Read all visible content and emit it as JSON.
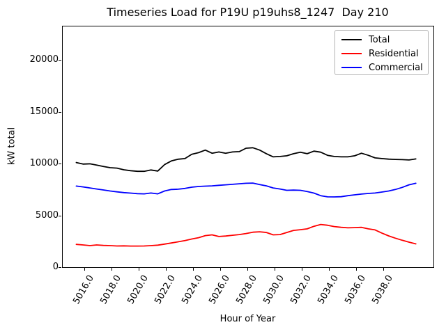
{
  "chart_data": {
    "type": "line",
    "title": "Timeseries Load for P19U p19uhs8_1247  Day 210",
    "xlabel": "Hour of Year",
    "ylabel": "kW total",
    "xlim": [
      5014.35,
      5041.7
    ],
    "ylim": [
      0,
      23300
    ],
    "grid": false,
    "legend_position": "upper right",
    "legend_border_color": "#b3b3b3",
    "xticks": {
      "values": [
        5016,
        5018,
        5020,
        5022,
        5024,
        5026,
        5028,
        5030,
        5032,
        5034,
        5036,
        5038
      ],
      "labels": [
        "5016.0",
        "5018.0",
        "5020.0",
        "5022.0",
        "5024.0",
        "5026.0",
        "5028.0",
        "5030.0",
        "5032.0",
        "5034.0",
        "5036.0",
        "5038.0"
      ]
    },
    "yticks": {
      "values": [
        0,
        5000,
        10000,
        15000,
        20000
      ],
      "labels": [
        "0",
        "5000",
        "10000",
        "15000",
        "20000"
      ]
    },
    "x": [
      5015.4,
      5015.9,
      5016.4,
      5016.9,
      5017.4,
      5017.9,
      5018.4,
      5018.9,
      5019.4,
      5019.9,
      5020.4,
      5020.9,
      5021.4,
      5021.9,
      5022.4,
      5022.9,
      5023.4,
      5023.9,
      5024.4,
      5024.9,
      5025.4,
      5025.9,
      5026.4,
      5026.9,
      5027.4,
      5027.9,
      5028.4,
      5028.9,
      5029.4,
      5029.9,
      5030.4,
      5030.9,
      5031.4,
      5031.9,
      5032.4,
      5032.9,
      5033.4,
      5033.9,
      5034.4,
      5034.9,
      5035.4,
      5035.9,
      5036.4,
      5036.9,
      5037.4,
      5037.9,
      5038.4,
      5038.9,
      5039.4,
      5039.9,
      5040.4
    ],
    "series": [
      {
        "name": "Total",
        "color": "#000000",
        "values": [
          10100,
          9950,
          9980,
          9850,
          9720,
          9600,
          9560,
          9400,
          9310,
          9250,
          9250,
          9380,
          9280,
          9900,
          10250,
          10420,
          10480,
          10900,
          11050,
          11300,
          11000,
          11120,
          11000,
          11120,
          11150,
          11480,
          11530,
          11300,
          10950,
          10650,
          10680,
          10750,
          10950,
          11100,
          10950,
          11200,
          11100,
          10800,
          10680,
          10650,
          10650,
          10750,
          11000,
          10800,
          10550,
          10480,
          10430,
          10400,
          10380,
          10350,
          10450
        ]
      },
      {
        "name": "Residential",
        "color": "#ff0000",
        "values": [
          2200,
          2150,
          2080,
          2150,
          2100,
          2080,
          2050,
          2060,
          2040,
          2040,
          2050,
          2080,
          2130,
          2230,
          2340,
          2450,
          2570,
          2720,
          2850,
          3050,
          3120,
          2960,
          3010,
          3080,
          3150,
          3250,
          3380,
          3420,
          3350,
          3120,
          3150,
          3350,
          3550,
          3620,
          3700,
          3950,
          4120,
          4050,
          3920,
          3850,
          3800,
          3820,
          3850,
          3700,
          3600,
          3300,
          3020,
          2800,
          2600,
          2420,
          2250
        ]
      },
      {
        "name": "Commercial",
        "color": "#0000ff",
        "values": [
          7830,
          7750,
          7650,
          7550,
          7450,
          7350,
          7270,
          7200,
          7150,
          7100,
          7080,
          7160,
          7080,
          7350,
          7500,
          7530,
          7600,
          7720,
          7790,
          7820,
          7850,
          7900,
          7950,
          8000,
          8050,
          8100,
          8120,
          7980,
          7850,
          7650,
          7550,
          7420,
          7440,
          7420,
          7300,
          7150,
          6900,
          6790,
          6780,
          6800,
          6900,
          6980,
          7060,
          7120,
          7160,
          7250,
          7350,
          7500,
          7700,
          7950,
          8100
        ]
      }
    ]
  }
}
